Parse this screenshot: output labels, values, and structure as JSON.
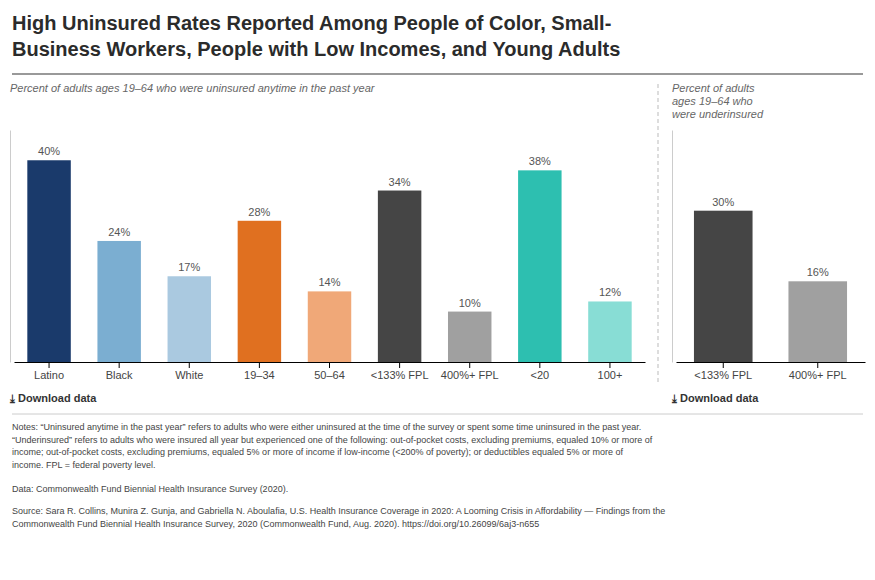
{
  "chart_data": [
    {
      "type": "bar",
      "title": "High Uninsured Rates Reported Among People of Color, Small-\nBusiness Workers, People with Low Incomes, and Young Adults",
      "subtitle": "Percent of adults ages 19–64 who were uninsured anytime in the past year",
      "categories": [
        "Latino",
        "Black",
        "White",
        "19–34",
        "50–64",
        "<133% FPL",
        "400%+ FPL",
        "<20",
        "100+"
      ],
      "values": [
        40,
        24,
        17,
        28,
        14,
        34,
        10,
        38,
        12
      ],
      "value_labels": [
        "40%",
        "24%",
        "17%",
        "28%",
        "14%",
        "34%",
        "10%",
        "38%",
        "12%"
      ],
      "colors": [
        "#1a3a6b",
        "#7baed1",
        "#aac9e0",
        "#e07020",
        "#f0a878",
        "#454545",
        "#a0a0a0",
        "#2dbfb0",
        "#88ddd5"
      ],
      "ylim": [
        0,
        46
      ],
      "tick_labels": "x",
      "data_labels": true,
      "annotations": [
        "⤓  Download data",
        "Notes: “Uninsured anytime in the past year” refers to adults who were either uninsured at the time of the survey or spent some time uninsured in the past year.\n“Underinsured” refers to adults who were insured all year but experienced one of the following: out-of-pocket costs, excluding premiums, equaled 10% or more of\nincome; out-of-pocket costs, excluding premiums, equaled 5% or more of income if low-income (<200% of poverty); or deductibles equaled 5% or more of\nincome. FPL = federal poverty level.",
        "Data: Commonwealth Fund Biennial Health Insurance Survey (2020).",
        "Source: Sara R. Collins, Munira Z. Gunja, and Gabriella N. Aboulafia, U.S. Health Insurance Coverage in 2020: A Looming Crisis in Affordability — Findings from the\nCommonwealth Fund Biennial Health Insurance Survey, 2020 (Commonwealth Fund, Aug. 2020). https://doi.org/10.26099/6aj3-n655"
      ]
    },
    {
      "type": "bar",
      "subtitle": "Percent of adults\nages 19–64 who\nwere underinsured",
      "categories": [
        "<133% FPL",
        "400%+ FPL"
      ],
      "values": [
        30,
        16
      ],
      "value_labels": [
        "30%",
        "16%"
      ],
      "colors": [
        "#454545",
        "#a0a0a0"
      ],
      "ylim": [
        0,
        46
      ],
      "tick_labels": "x",
      "data_labels": true,
      "annotations": [
        "⤓  Download data"
      ]
    }
  ]
}
